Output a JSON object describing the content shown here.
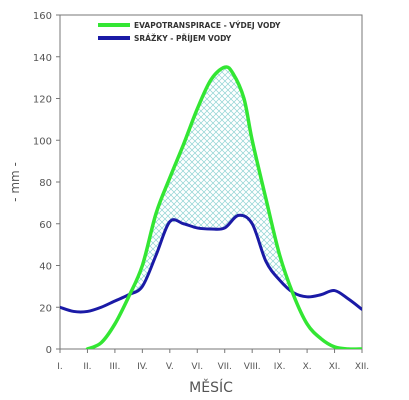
{
  "chart_data": {
    "type": "line",
    "title": "",
    "xlabel": "MĚSÍC",
    "ylabel": "- mm -",
    "ylim": [
      0,
      160
    ],
    "yticks": [
      "0",
      "20",
      "40",
      "60",
      "80",
      "100",
      "120",
      "140",
      "160"
    ],
    "xlim": [
      1,
      12
    ],
    "categories": [
      "I.",
      "II.",
      "III.",
      "IV.",
      "V.",
      "VI.",
      "VII.",
      "VIII.",
      "IX.",
      "X.",
      "XI.",
      "XII."
    ],
    "grid": false,
    "legend_position": "top-center",
    "series": [
      {
        "name": "EVAPOTRANSPIRACE - VÝDEJ VODY",
        "color": "#33e633",
        "x": [
          2,
          2.5,
          3,
          3.5,
          4,
          4.5,
          5,
          5.5,
          6,
          6.5,
          7,
          7.3,
          7.7,
          8,
          8.5,
          9,
          9.5,
          10,
          10.5,
          11,
          11.5,
          12
        ],
        "y": [
          0,
          3,
          12,
          25,
          40,
          65,
          82,
          98,
          115,
          129,
          135,
          132,
          120,
          100,
          72,
          45,
          26,
          12,
          5,
          1,
          0,
          0
        ]
      },
      {
        "name": "SRÁŽKY - PŘÍJEM VODY",
        "color": "#1a1aa6",
        "x": [
          1,
          1.5,
          2,
          2.5,
          3,
          3.5,
          4,
          4.5,
          5,
          5.5,
          6,
          6.5,
          7,
          7.5,
          8,
          8.5,
          9,
          9.5,
          10,
          10.5,
          11,
          11.5,
          12
        ],
        "y": [
          20,
          18,
          18,
          20,
          23,
          26,
          30,
          45,
          61,
          60,
          58,
          57.5,
          58,
          64,
          60,
          42,
          33,
          27,
          25,
          26,
          28,
          24,
          19
        ]
      }
    ],
    "fill_between": {
      "pattern": "crosshatch",
      "color": "#8fd3d3"
    }
  }
}
